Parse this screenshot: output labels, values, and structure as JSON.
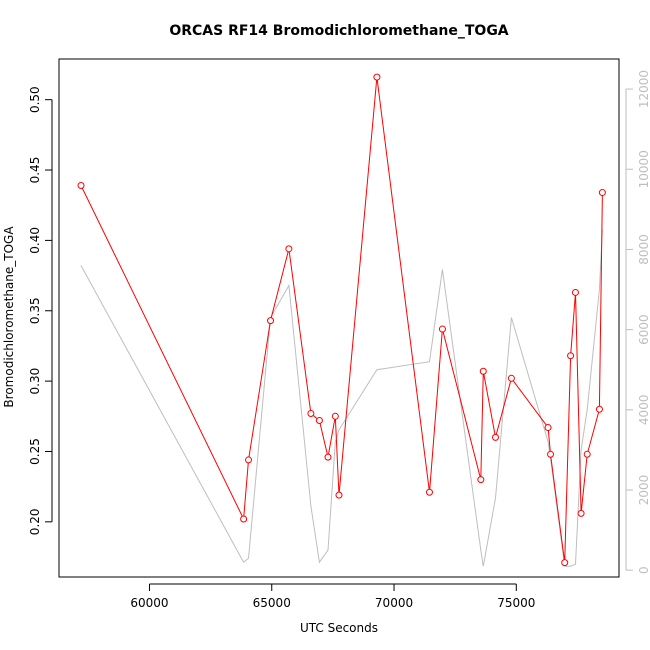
{
  "chart_data": {
    "type": "line",
    "title": "ORCAS RF14 Bromodichloromethane_TOGA",
    "xlabel": "UTC Seconds",
    "ylabel": "Bromodichloromethane_TOGA",
    "xlim": [
      56300,
      79200
    ],
    "ylim": [
      0.1608,
      0.5289
    ],
    "y2lim": [
      -170,
      12750
    ],
    "x_ticks": [
      60000,
      65000,
      70000,
      75000
    ],
    "x_tick_labels": [
      "60000",
      "65000",
      "70000",
      "75000"
    ],
    "y_ticks": [
      0.2,
      0.25,
      0.3,
      0.35,
      0.4,
      0.45,
      0.5
    ],
    "y_tick_labels": [
      "0.20",
      "0.25",
      "0.30",
      "0.35",
      "0.40",
      "0.45",
      "0.50"
    ],
    "y2_ticks": [
      0,
      2000,
      4000,
      6000,
      8000,
      10000,
      12000
    ],
    "y2_tick_labels": [
      "0",
      "2000",
      "4000",
      "6000",
      "8000",
      "10000",
      "12000"
    ],
    "colors": {
      "primary": "#ff0000",
      "secondary": "#bebebe",
      "axis": "#000000"
    },
    "series": [
      {
        "color": "#ff0000",
        "axis": "left",
        "markers": "open-circle",
        "x": [
          57200,
          63850,
          64050,
          64950,
          65700,
          66600,
          66950,
          67300,
          67600,
          67750,
          69300,
          71450,
          71980,
          73550,
          73650,
          74150,
          74800,
          76300,
          76400,
          76980,
          77220,
          77420,
          77650,
          77900,
          78400,
          78520
        ],
        "y": [
          0.439,
          0.202,
          0.244,
          0.343,
          0.394,
          0.277,
          0.272,
          0.246,
          0.275,
          0.219,
          0.516,
          0.221,
          0.337,
          0.23,
          0.307,
          0.26,
          0.302,
          0.267,
          0.248,
          0.171,
          0.318,
          0.363,
          0.206,
          0.248,
          0.28,
          0.434
        ]
      },
      {
        "color": "#bebebe",
        "axis": "right",
        "markers": "none",
        "x": [
          57200,
          63850,
          64050,
          64950,
          65700,
          66600,
          66950,
          67300,
          67600,
          67750,
          69300,
          71450,
          71980,
          73550,
          73650,
          74150,
          74800,
          76300,
          76400,
          76980,
          77220,
          77420,
          77650,
          77900,
          78400,
          78520
        ],
        "y": [
          7600,
          200,
          300,
          6300,
          7100,
          1600,
          200,
          500,
          3200,
          3500,
          5000,
          5200,
          7500,
          500,
          100,
          1800,
          6300,
          3200,
          2800,
          100,
          100,
          150,
          3000,
          4000,
          7000,
          8500
        ]
      }
    ]
  }
}
